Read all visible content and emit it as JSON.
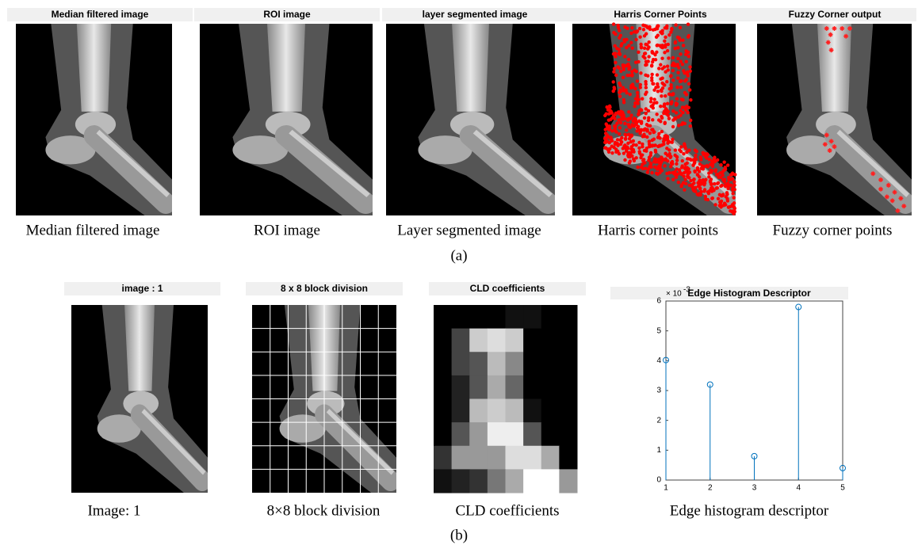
{
  "row_a": {
    "label": "(a)",
    "panels": [
      {
        "title": "Median filtered image",
        "caption": "Median filtered image"
      },
      {
        "title": "ROI image",
        "caption": "ROI image"
      },
      {
        "title": "layer segmented image",
        "caption": "Layer segmented image"
      },
      {
        "title": "Harris Corner Points",
        "caption": "Harris corner points"
      },
      {
        "title": "Fuzzy Corner output",
        "caption": "Fuzzy corner points"
      }
    ]
  },
  "row_b": {
    "label": "(b)",
    "panels": [
      {
        "title": "image : 1",
        "caption": "Image: 1"
      },
      {
        "title": "8 x 8 block division",
        "caption": "8×8 block division"
      },
      {
        "title": "CLD coefficients",
        "caption": "CLD coefficients"
      }
    ]
  },
  "chart_data": {
    "type": "stem",
    "title": "Edge Histogram Descriptor",
    "caption": "Edge histogram descriptor",
    "y_multiplier": {
      "base": "× 10",
      "exponent": "-3"
    },
    "x": [
      1,
      2,
      3,
      4,
      5
    ],
    "values": [
      4.02,
      3.2,
      0.8,
      5.8,
      0.4
    ],
    "color": "#0072bd",
    "xlim": [
      1,
      5
    ],
    "ylim": [
      0,
      6
    ],
    "xticks": [
      1,
      2,
      3,
      4,
      5
    ],
    "yticks": [
      0,
      1,
      2,
      3,
      4,
      5,
      6
    ]
  }
}
